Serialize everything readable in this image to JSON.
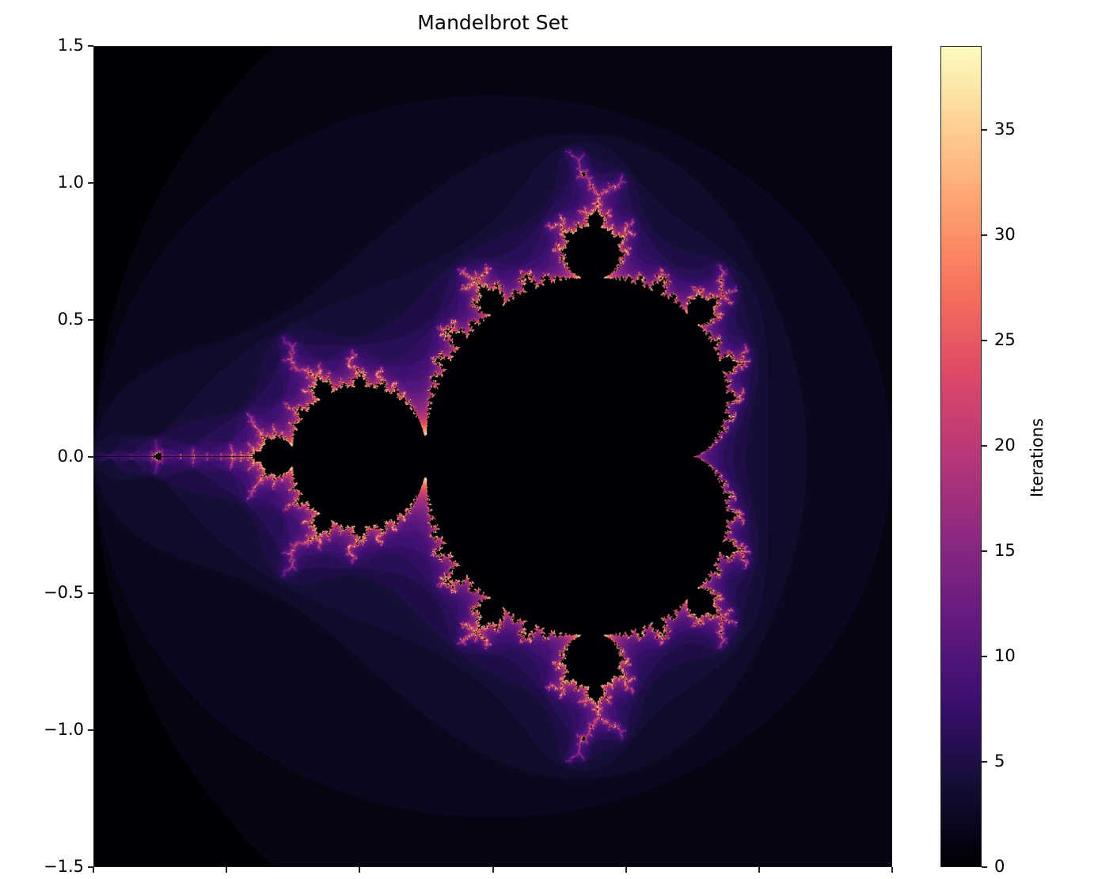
{
  "chart_data": {
    "type": "heatmap",
    "title": "Mandelbrot Set",
    "xlabel": "",
    "ylabel": "",
    "xlim": [
      -2.0,
      1.0
    ],
    "ylim": [
      -1.5,
      1.5
    ],
    "xticks": [
      -2.0,
      -1.5,
      -1.0,
      -0.5,
      0.0,
      0.5,
      1.0
    ],
    "yticks": [
      -1.5,
      -1.0,
      -0.5,
      0.0,
      0.5,
      1.0,
      1.5
    ],
    "ytick_labels": [
      "−1.5",
      "−1.0",
      "−0.5",
      "0.0",
      "0.5",
      "1.0",
      "1.5"
    ],
    "max_iterations": 40,
    "inside_value": 0,
    "colormap": "magma",
    "colorbar": {
      "label": "Iterations",
      "range": [
        0,
        39
      ],
      "ticks": [
        0,
        5,
        10,
        15,
        20,
        25,
        30,
        35
      ],
      "tick_labels": [
        "0",
        "5",
        "10",
        "15",
        "20",
        "25",
        "30",
        "35"
      ]
    },
    "grid": false
  }
}
